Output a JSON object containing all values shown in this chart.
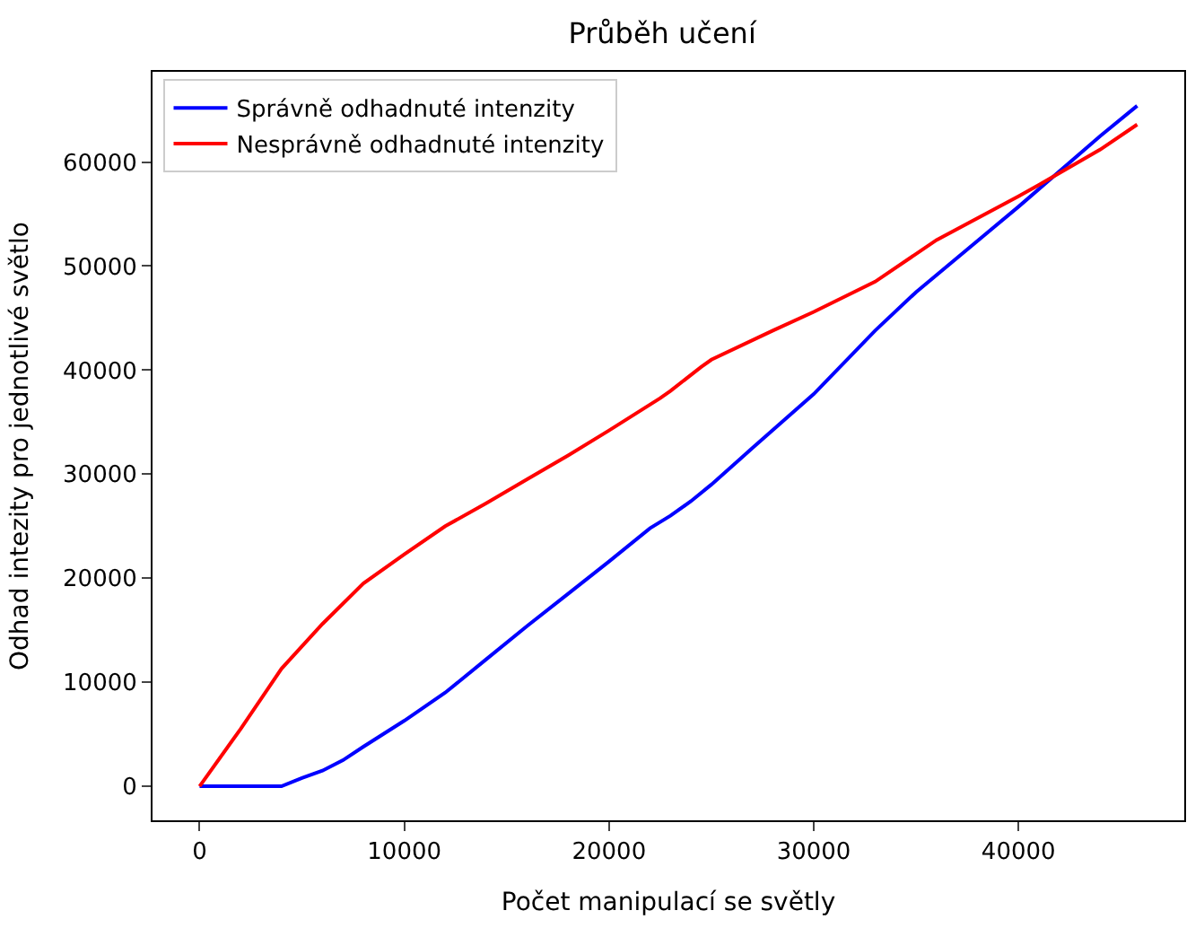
{
  "chart_data": {
    "type": "line",
    "title": "Průběh učení",
    "xlabel": "Počet manipulací se světly",
    "ylabel": "Odhad intezity pro jednotlivé světlo",
    "xlim": [
      -2300,
      48100
    ],
    "ylim": [
      -3270,
      68670
    ],
    "xticks": [
      0,
      10000,
      20000,
      30000,
      40000
    ],
    "yticks": [
      0,
      10000,
      20000,
      30000,
      40000,
      50000,
      60000
    ],
    "legend": "top left",
    "line_style": "solid",
    "series": [
      {
        "name": "Správně odhadnuté intenzity",
        "color": "#0000ff",
        "x": [
          0,
          4000,
          5000,
          6000,
          7000,
          8000,
          10000,
          12000,
          14000,
          16000,
          18000,
          20000,
          22000,
          23000,
          24000,
          25000,
          27000,
          30000,
          33000,
          35000,
          40000,
          44000,
          45800
        ],
        "values": [
          0,
          0,
          800,
          1500,
          2500,
          3800,
          6300,
          9000,
          12200,
          15400,
          18500,
          21600,
          24800,
          26000,
          27400,
          29000,
          32500,
          37700,
          43800,
          47500,
          55700,
          62500,
          65400
        ]
      },
      {
        "name": "Nesprávně odhadnuté intenzity",
        "color": "#ff0000",
        "x": [
          0,
          2000,
          4000,
          6000,
          8000,
          10000,
          12000,
          14000,
          16000,
          18000,
          20000,
          22500,
          23000,
          24500,
          25000,
          28000,
          30000,
          33000,
          36000,
          40000,
          41000,
          44000,
          45800
        ],
        "values": [
          0,
          5500,
          11300,
          15600,
          19500,
          22300,
          25000,
          27200,
          29500,
          31800,
          34200,
          37300,
          38000,
          40300,
          41000,
          43800,
          45600,
          48500,
          52500,
          56700,
          57800,
          61200,
          63600
        ]
      }
    ]
  }
}
